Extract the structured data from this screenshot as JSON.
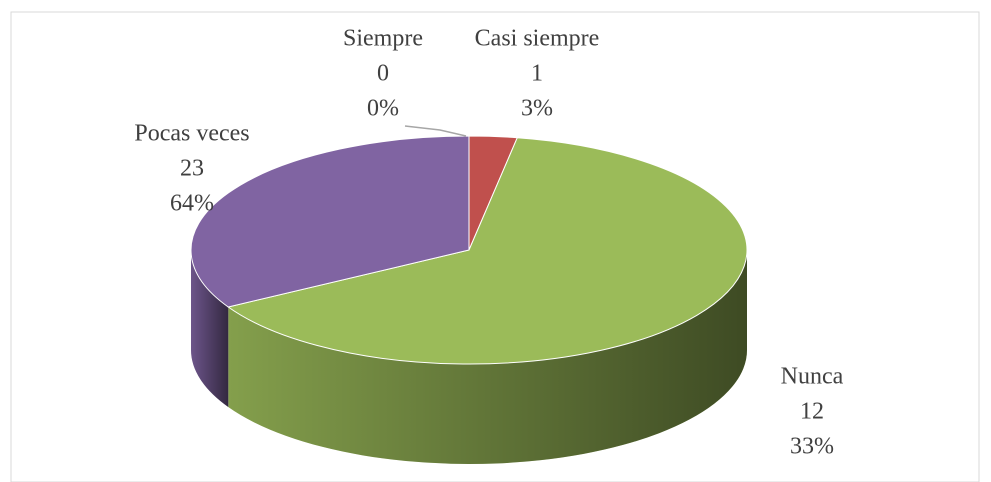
{
  "chart_data": {
    "type": "pie3d",
    "categories": [
      "Siempre",
      "Casi siempre",
      "Pocas veces",
      "Nunca"
    ],
    "values": [
      0,
      1,
      23,
      12
    ],
    "percent_labels": [
      "0%",
      "3%",
      "64%",
      "33%"
    ],
    "colors": [
      "#4f81bd",
      "#c0504d",
      "#9bbb59",
      "#8064a2"
    ]
  }
}
